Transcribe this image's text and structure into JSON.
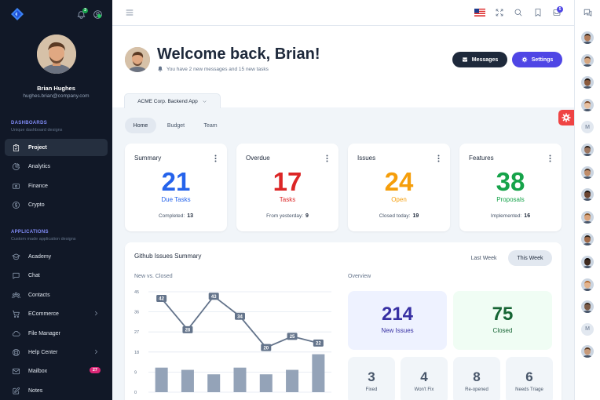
{
  "user": {
    "name": "Brian Hughes",
    "email": "hughes.brian@company.com"
  },
  "notifications": {
    "bell_count": "3",
    "messages_count": "5"
  },
  "sidebar": {
    "dashboards": {
      "title": "DASHBOARDS",
      "subtitle": "Unique dashboard designs",
      "items": [
        {
          "label": "Project",
          "icon": "clipboard-check-icon",
          "active": true
        },
        {
          "label": "Analytics",
          "icon": "chart-pie-icon"
        },
        {
          "label": "Finance",
          "icon": "cash-icon"
        },
        {
          "label": "Crypto",
          "icon": "currency-dollar-icon"
        }
      ]
    },
    "applications": {
      "title": "APPLICATIONS",
      "subtitle": "Custom made application designs",
      "items": [
        {
          "label": "Academy",
          "icon": "academic-cap-icon"
        },
        {
          "label": "Chat",
          "icon": "chat-bubble-icon"
        },
        {
          "label": "Contacts",
          "icon": "user-group-icon"
        },
        {
          "label": "ECommerce",
          "icon": "shopping-cart-icon",
          "chevron": true
        },
        {
          "label": "File Manager",
          "icon": "cloud-icon"
        },
        {
          "label": "Help Center",
          "icon": "support-icon",
          "chevron": true
        },
        {
          "label": "Mailbox",
          "icon": "mail-icon",
          "badge": "27"
        },
        {
          "label": "Notes",
          "icon": "pencil-square-icon"
        }
      ]
    }
  },
  "header": {
    "welcome": "Welcome back, Brian!",
    "subtitle": "You have 2 new messages and 15 new tasks",
    "messages_button": "Messages",
    "settings_button": "Settings",
    "project_selector": "ACME Corp. Backend App"
  },
  "tabs": [
    "Home",
    "Budget",
    "Team"
  ],
  "cards": [
    {
      "title": "Summary",
      "value": "21",
      "label": "Due Tasks",
      "foot_label": "Completed:",
      "foot_value": "13",
      "color": "#2563eb"
    },
    {
      "title": "Overdue",
      "value": "17",
      "label": "Tasks",
      "foot_label": "From yesterday:",
      "foot_value": "9",
      "color": "#dc2626"
    },
    {
      "title": "Issues",
      "value": "24",
      "label": "Open",
      "foot_label": "Closed today:",
      "foot_value": "19",
      "color": "#f59e0b"
    },
    {
      "title": "Features",
      "value": "38",
      "label": "Proposals",
      "foot_label": "Implemented:",
      "foot_value": "16",
      "color": "#16a34a"
    }
  ],
  "github": {
    "title": "Github Issues Summary",
    "last_week": "Last Week",
    "this_week": "This Week",
    "chart_title": "New vs. Closed",
    "overview_title": "Overview",
    "new_issues": {
      "value": "214",
      "label": "New Issues"
    },
    "closed": {
      "value": "75",
      "label": "Closed"
    },
    "small": [
      {
        "value": "3",
        "label": "Fixed"
      },
      {
        "value": "4",
        "label": "Won't Fix"
      },
      {
        "value": "8",
        "label": "Re-opened"
      },
      {
        "value": "6",
        "label": "Needs Triage"
      }
    ]
  },
  "chart_data": {
    "type": "bar+line",
    "yticks": [
      0,
      9,
      18,
      27,
      36,
      45
    ],
    "ylim": [
      0,
      45
    ],
    "line_values": [
      42,
      28,
      43,
      34,
      20,
      25,
      22
    ],
    "bar_values": [
      11,
      10,
      8,
      11,
      8,
      10,
      17
    ],
    "line_color": "#64748b",
    "bar_color": "#94a3b8"
  }
}
